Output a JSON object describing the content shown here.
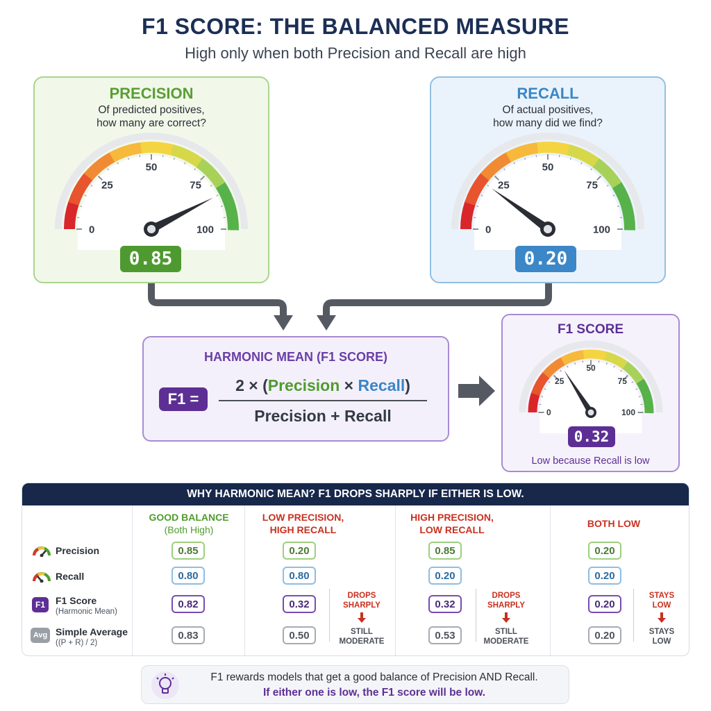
{
  "header": {
    "title": "F1 SCORE: THE BALANCED MEASURE",
    "subtitle": "High only when both Precision and Recall are high"
  },
  "precision": {
    "title": "PRECISION",
    "desc_line1": "Of predicted positives,",
    "desc_line2": "how many are correct?",
    "value": 0.85,
    "display": "0.85",
    "tick_labels": [
      "0",
      "25",
      "50",
      "75",
      "100"
    ],
    "color": "#5a9e32"
  },
  "recall": {
    "title": "RECALL",
    "desc_line1": "Of actual positives,",
    "desc_line2": "how many did we find?",
    "value": 0.2,
    "display": "0.20",
    "tick_labels": [
      "0",
      "25",
      "50",
      "75",
      "100"
    ],
    "color": "#3a86c6"
  },
  "formula": {
    "title": "HARMONIC MEAN (F1 SCORE)",
    "badge": "F1 =",
    "num_prefix": "2 × (",
    "num_precision": "Precision",
    "num_times": " × ",
    "num_recall": "Recall",
    "num_suffix": ")",
    "denominator": "Precision + Recall"
  },
  "f1": {
    "title": "F1 SCORE",
    "value": 0.32,
    "display": "0.32",
    "tick_labels": [
      "0",
      "25",
      "50",
      "75",
      "100"
    ],
    "note": "Low because Recall is low",
    "color": "#5d2f95"
  },
  "table": {
    "header": "WHY HARMONIC MEAN?  F1 DROPS SHARPLY IF EITHER IS LOW.",
    "rows": [
      {
        "label": "Precision",
        "sub": ""
      },
      {
        "label": "Recall",
        "sub": ""
      },
      {
        "label": "F1 Score",
        "sub": "(Harmonic Mean)",
        "badge": "F1"
      },
      {
        "label": "Simple Average",
        "sub": "((P + R) / 2)",
        "badge": "Avg"
      }
    ],
    "columns": [
      {
        "head1": "GOOD BALANCE",
        "head2": "(Both High)",
        "color": "#4f9c2e",
        "values": [
          "0.85",
          "0.80",
          "0.82",
          "0.83"
        ]
      },
      {
        "head1": "LOW PRECISION,",
        "head2": "HIGH RECALL",
        "color": "#c9301f",
        "values": [
          "0.20",
          "0.80",
          "0.32",
          "0.50"
        ],
        "note_top": [
          "DROPS",
          "SHARPLY"
        ],
        "note_bottom": [
          "STILL",
          "MODERATE"
        ]
      },
      {
        "head1": "HIGH PRECISION,",
        "head2": "LOW RECALL",
        "color": "#c9301f",
        "values": [
          "0.85",
          "0.20",
          "0.32",
          "0.53"
        ],
        "note_top": [
          "DROPS",
          "SHARPLY"
        ],
        "note_bottom": [
          "STILL",
          "MODERATE"
        ]
      },
      {
        "head1": "BOTH LOW",
        "head2": "",
        "color": "#c9301f",
        "values": [
          "0.20",
          "0.20",
          "0.20",
          "0.20"
        ],
        "note_top": [
          "STAYS",
          "LOW"
        ],
        "note_bottom": [
          "STAYS",
          "LOW"
        ]
      }
    ]
  },
  "footer": {
    "line1": "F1 rewards models that get a good balance of Precision AND Recall.",
    "line2": "If either one is low, the F1 score will be low."
  }
}
